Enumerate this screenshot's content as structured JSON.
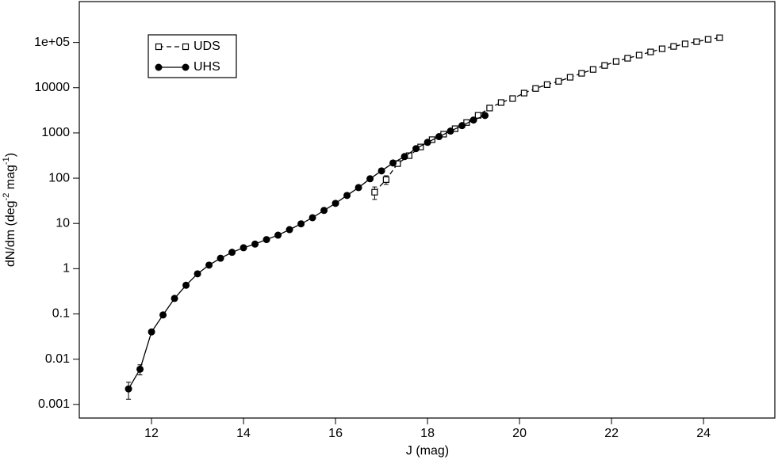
{
  "chart_data": {
    "type": "line",
    "xlabel": "J (mag)",
    "ylabel_parts": [
      "dN/dm (deg",
      "-2",
      " mag",
      "-1",
      ")"
    ],
    "log_y": true,
    "xlim": [
      10.43,
      25.55
    ],
    "ylim": [
      0.0005,
      800000
    ],
    "xticks": [
      12,
      14,
      16,
      18,
      20,
      22,
      24
    ],
    "yticks": [
      0.001,
      0.01,
      0.1,
      1,
      10,
      100,
      1000,
      10000,
      {
        "value": 100000,
        "label": "1e+05"
      }
    ],
    "legend": "upper left",
    "series": [
      {
        "name": "UDS",
        "color": "#000000",
        "marker": "open-square",
        "dash": true,
        "x": [
          16.85,
          17.1,
          17.35,
          17.6,
          17.85,
          18.1,
          18.35,
          18.6,
          18.85,
          19.1,
          19.35,
          19.6,
          19.85,
          20.1,
          20.35,
          20.6,
          20.85,
          21.1,
          21.35,
          21.6,
          21.85,
          22.1,
          22.35,
          22.6,
          22.85,
          23.1,
          23.35,
          23.6,
          23.85,
          24.1,
          24.35
        ],
        "values": [
          49,
          93,
          210,
          315,
          490,
          710,
          940,
          1240,
          1700,
          2450,
          3550,
          4700,
          5750,
          7600,
          9600,
          11700,
          13800,
          17000,
          20800,
          25300,
          31000,
          38000,
          44700,
          52500,
          61700,
          72400,
          81700,
          93000,
          104000,
          117000,
          127000
        ],
        "errors": [
          15,
          20,
          null,
          null,
          null,
          null,
          null,
          null,
          null,
          null,
          null,
          null,
          null,
          null,
          null,
          null,
          null,
          null,
          null,
          null,
          null,
          null,
          null,
          null,
          null,
          null,
          null,
          null,
          null,
          null,
          null
        ]
      },
      {
        "name": "UHS",
        "color": "#000000",
        "marker": "filled-circle",
        "dash": false,
        "x": [
          11.5,
          11.75,
          12.0,
          12.25,
          12.5,
          12.75,
          13.0,
          13.25,
          13.5,
          13.75,
          14.0,
          14.25,
          14.5,
          14.75,
          15.0,
          15.25,
          15.5,
          15.75,
          16.0,
          16.25,
          16.5,
          16.75,
          17.0,
          17.25,
          17.5,
          17.75,
          18.0,
          18.25,
          18.5,
          18.75,
          19.0,
          19.25
        ],
        "values": [
          0.0022,
          0.006,
          0.04,
          0.095,
          0.22,
          0.43,
          0.77,
          1.2,
          1.7,
          2.3,
          2.9,
          3.5,
          4.4,
          5.5,
          7.3,
          9.8,
          13.4,
          19.4,
          27.8,
          41.6,
          62,
          97,
          145,
          217,
          300,
          450,
          620,
          830,
          1100,
          1450,
          1930,
          2430
        ],
        "errors": [
          0.0009,
          0.0015,
          null,
          null,
          null,
          null,
          null,
          null,
          null,
          null,
          null,
          null,
          null,
          null,
          null,
          null,
          null,
          null,
          null,
          null,
          null,
          null,
          null,
          null,
          null,
          null,
          null,
          null,
          null,
          null,
          null,
          null
        ]
      }
    ]
  }
}
